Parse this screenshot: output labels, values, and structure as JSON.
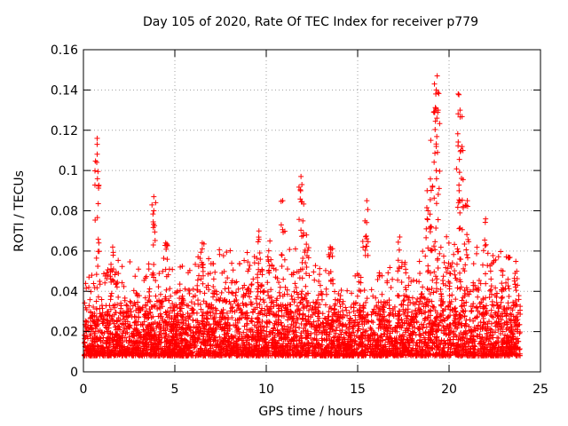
{
  "chart_data": {
    "type": "scatter",
    "title": "Day 105 of 2020, Rate Of TEC Index for receiver p779",
    "xlabel": "GPS time / hours",
    "ylabel": "ROTI / TECUs",
    "xlim": [
      0,
      25
    ],
    "ylim": [
      0,
      0.16
    ],
    "x_ticks": [
      0,
      5,
      10,
      15,
      20,
      25
    ],
    "y_ticks": [
      0,
      0.02,
      0.04,
      0.06,
      0.08,
      0.1,
      0.12,
      0.14,
      0.16
    ],
    "x_tick_labels": [
      "0",
      "5",
      "10",
      "15",
      "20",
      "25"
    ],
    "y_tick_labels": [
      "0",
      "0.02",
      "0.04",
      "0.06",
      "0.08",
      "0.1",
      "0.12",
      "0.14",
      "0.16"
    ],
    "grid": true,
    "marker": "+",
    "marker_color": "#ff0000",
    "series": [
      {
        "name": "ROTI",
        "baseline_envelope": {
          "x": [
            0,
            1,
            2,
            3,
            4,
            5,
            6,
            7,
            8,
            9,
            10,
            11,
            12,
            13,
            14,
            15,
            16,
            17,
            18,
            19,
            20,
            21,
            22,
            23,
            24
          ],
          "typical_max": [
            0.035,
            0.038,
            0.042,
            0.04,
            0.04,
            0.038,
            0.042,
            0.045,
            0.045,
            0.045,
            0.045,
            0.045,
            0.046,
            0.04,
            0.035,
            0.038,
            0.036,
            0.04,
            0.042,
            0.048,
            0.05,
            0.048,
            0.045,
            0.045,
            0.043
          ],
          "typical_min": [
            0.008,
            0.008,
            0.008,
            0.008,
            0.008,
            0.008,
            0.008,
            0.008,
            0.008,
            0.008,
            0.008,
            0.008,
            0.008,
            0.008,
            0.008,
            0.008,
            0.008,
            0.008,
            0.008,
            0.008,
            0.008,
            0.008,
            0.008,
            0.008,
            0.008
          ]
        },
        "peaks": [
          {
            "x": 0.75,
            "y": 0.116
          },
          {
            "x": 0.75,
            "y": 0.113
          },
          {
            "x": 1.6,
            "y": 0.062
          },
          {
            "x": 3.85,
            "y": 0.087
          },
          {
            "x": 3.85,
            "y": 0.08
          },
          {
            "x": 4.5,
            "y": 0.064
          },
          {
            "x": 6.5,
            "y": 0.064
          },
          {
            "x": 9.6,
            "y": 0.07
          },
          {
            "x": 10.2,
            "y": 0.065
          },
          {
            "x": 10.9,
            "y": 0.085
          },
          {
            "x": 11.9,
            "y": 0.097
          },
          {
            "x": 11.95,
            "y": 0.093
          },
          {
            "x": 12.2,
            "y": 0.068
          },
          {
            "x": 13.5,
            "y": 0.062
          },
          {
            "x": 15.5,
            "y": 0.085
          },
          {
            "x": 15.4,
            "y": 0.075
          },
          {
            "x": 17.3,
            "y": 0.067
          },
          {
            "x": 18.8,
            "y": 0.09
          },
          {
            "x": 19.0,
            "y": 0.115
          },
          {
            "x": 19.2,
            "y": 0.143
          },
          {
            "x": 19.35,
            "y": 0.147
          },
          {
            "x": 19.3,
            "y": 0.14
          },
          {
            "x": 19.4,
            "y": 0.13
          },
          {
            "x": 20.5,
            "y": 0.138
          },
          {
            "x": 20.6,
            "y": 0.13
          },
          {
            "x": 20.65,
            "y": 0.11
          },
          {
            "x": 20.55,
            "y": 0.09
          },
          {
            "x": 21.0,
            "y": 0.085
          },
          {
            "x": 22.0,
            "y": 0.076
          },
          {
            "x": 23.7,
            "y": 0.05
          }
        ]
      }
    ]
  }
}
